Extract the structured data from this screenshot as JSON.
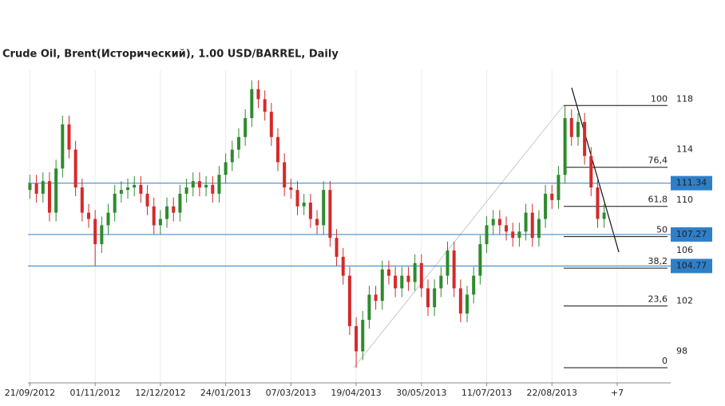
{
  "chart_data": {
    "type": "candlestick",
    "title": "Crude Oil, Brent(Исторический), 1.00 USD/BARREL, Daily",
    "open": [
      110.8,
      111.3,
      110.5,
      111.5,
      109,
      112.5,
      116,
      114,
      111,
      109,
      108.5,
      106.5,
      108,
      109,
      110.5,
      110.8,
      111,
      111.2,
      110.5,
      109.5,
      108,
      108.5,
      109.5,
      109,
      110.5,
      111,
      111.5,
      111,
      111.2,
      110.5,
      112,
      113,
      114,
      115,
      116.5,
      118.8,
      118,
      117,
      115,
      113,
      111,
      110.8,
      109.5,
      109.8,
      108.5,
      108,
      110.8,
      107,
      105.5,
      104,
      100,
      98,
      100.5,
      102.5,
      102,
      104.5,
      104,
      103,
      104,
      103.5,
      105,
      103,
      101.5,
      103,
      104,
      106,
      103,
      101,
      102.5,
      104,
      106.5,
      108,
      108.5,
      108,
      107.5,
      107,
      107.5,
      109,
      107,
      108.5,
      110.5,
      110,
      112,
      116.5,
      115,
      116.2,
      113.5,
      111,
      108.5
    ],
    "high": [
      112.0,
      112.0,
      112.2,
      112.2,
      113.2,
      116.7,
      116.7,
      114.7,
      111.7,
      109.7,
      109.2,
      108.7,
      109.7,
      111.2,
      111.5,
      111.7,
      111.9,
      111.9,
      111.2,
      110.2,
      109.2,
      110.2,
      110.2,
      111.2,
      111.7,
      112.2,
      112.2,
      111.9,
      111.9,
      112.7,
      113.7,
      114.7,
      115.7,
      117.2,
      119.5,
      119.5,
      118.7,
      117.7,
      115.7,
      113.7,
      111.7,
      111.5,
      110.5,
      110.5,
      109.2,
      111.5,
      111.5,
      107.7,
      106.2,
      104.7,
      100.7,
      101.2,
      103.2,
      103.2,
      105.2,
      105.2,
      104.7,
      104.7,
      104.7,
      105.7,
      105.7,
      103.7,
      103.7,
      104.7,
      106.7,
      106.7,
      103.7,
      103.2,
      104.7,
      107.2,
      108.7,
      109.2,
      109.2,
      108.7,
      108.2,
      108.2,
      109.7,
      109.7,
      109.2,
      111.2,
      111.2,
      112.7,
      117.5,
      117.2,
      116.9,
      116.9,
      114.2,
      111.7,
      109.7
    ],
    "low": [
      110.1,
      109.8,
      109.8,
      108.3,
      108.3,
      111.8,
      113.3,
      110.3,
      108.3,
      107.8,
      104.8,
      105.8,
      107.3,
      108.3,
      109.8,
      110.1,
      110.3,
      109.8,
      108.8,
      107.3,
      107.3,
      107.8,
      108.3,
      108.3,
      109.8,
      110.3,
      110.3,
      110.3,
      109.8,
      109.8,
      111.3,
      112.3,
      113.3,
      114.3,
      115.8,
      117.3,
      116.3,
      114.3,
      112.3,
      110.3,
      110.1,
      108.8,
      108.8,
      107.8,
      107.3,
      107.3,
      106.3,
      104.8,
      103.3,
      99.3,
      96.7,
      97.3,
      99.8,
      101.3,
      101.3,
      103.3,
      102.3,
      102.3,
      102.8,
      102.8,
      102.3,
      100.8,
      100.8,
      102.3,
      103.3,
      102.3,
      100.3,
      100.3,
      101.8,
      103.3,
      105.8,
      107.3,
      107.3,
      106.8,
      106.3,
      106.3,
      106.8,
      106.3,
      106.3,
      107.8,
      109.3,
      109.3,
      111.3,
      114.3,
      114.3,
      112.8,
      110.3,
      107.8,
      107.8
    ],
    "close": [
      111.3,
      110.5,
      111.5,
      109,
      112.5,
      116,
      114,
      111,
      109,
      108.5,
      106.5,
      108,
      109,
      110.5,
      110.8,
      111,
      111.2,
      110.5,
      109.5,
      108,
      108.5,
      109.5,
      109,
      110.5,
      111,
      111.5,
      111,
      111.2,
      110.5,
      112,
      113,
      114,
      115,
      116.5,
      118.8,
      118,
      117,
      115,
      113,
      111,
      110.8,
      109.5,
      109.8,
      108.5,
      108,
      110.8,
      107,
      105.5,
      104,
      100,
      98,
      100.5,
      102.5,
      102,
      104.5,
      104,
      103,
      104,
      103.5,
      105,
      103,
      101.5,
      103,
      104,
      106,
      103,
      101,
      102.5,
      104,
      106.5,
      108,
      108.5,
      108,
      107.5,
      107,
      107.5,
      109,
      107,
      108.5,
      110.5,
      110,
      112,
      116.5,
      115,
      116.2,
      113.5,
      111,
      108.5,
      109
    ],
    "up_color": "#2e8b2e",
    "down_color": "#d42a2a",
    "xlim": [
      -0.3,
      98.2
    ],
    "xticks": [
      {
        "value": 0,
        "label": "21/09/2012"
      },
      {
        "value": 10,
        "label": "01/11/2012"
      },
      {
        "value": 20,
        "label": "12/12/2012"
      },
      {
        "value": 30,
        "label": "24/01/2013"
      },
      {
        "value": 40,
        "label": "07/03/2013"
      },
      {
        "value": 50,
        "label": "19/04/2013"
      },
      {
        "value": 60,
        "label": "30/05/2013"
      },
      {
        "value": 70,
        "label": "11/07/2013"
      },
      {
        "value": 80,
        "label": "22/08/2013"
      },
      {
        "value": 90,
        "label": "+7"
      }
    ],
    "ylim": [
      95.5,
      120.3
    ],
    "yticks": [
      98,
      102,
      106,
      110,
      114,
      118
    ],
    "levels": [
      111.34,
      107.27,
      104.77
    ],
    "level_color": "#2f7fc8",
    "fib_labels": [
      "100",
      "76,4",
      "61,8",
      "50",
      "38,2",
      "23,6",
      "0"
    ],
    "fib_values": [
      117.5,
      112.6,
      109.5,
      107.1,
      104.6,
      101.6,
      96.7
    ],
    "grid": true
  }
}
